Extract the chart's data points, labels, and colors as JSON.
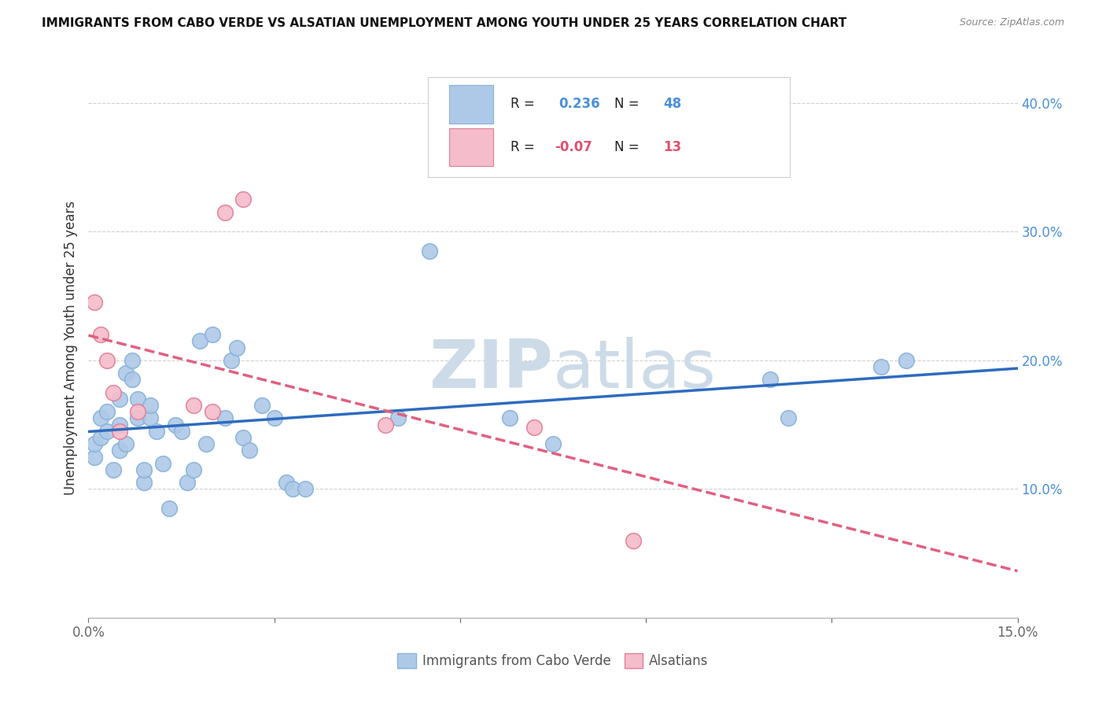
{
  "title": "IMMIGRANTS FROM CABO VERDE VS ALSATIAN UNEMPLOYMENT AMONG YOUTH UNDER 25 YEARS CORRELATION CHART",
  "source": "Source: ZipAtlas.com",
  "ylabel_left": "Unemployment Among Youth under 25 years",
  "x_min": 0.0,
  "x_max": 0.15,
  "y_min": 0.0,
  "y_max": 0.42,
  "right_yticks": [
    0.1,
    0.2,
    0.3,
    0.4
  ],
  "right_yticklabels": [
    "10.0%",
    "20.0%",
    "30.0%",
    "40.0%"
  ],
  "bottom_xticks": [
    0.0,
    0.03,
    0.06,
    0.09,
    0.12,
    0.15
  ],
  "bottom_xticklabels_show": [
    "0.0%",
    "",
    "",
    "",
    "",
    "15.0%"
  ],
  "legend_labels": [
    "Immigrants from Cabo Verde",
    "Alsatians"
  ],
  "series1_color": "#aec9e8",
  "series1_edge": "#89b3d9",
  "series2_color": "#f5bccb",
  "series2_edge": "#e08099",
  "trendline1_color": "#2e6bbf",
  "trendline2_color": "#e06080",
  "R1": 0.236,
  "N1": 48,
  "R2": -0.07,
  "N2": 13,
  "blue_points_x": [
    0.001,
    0.001,
    0.002,
    0.002,
    0.003,
    0.003,
    0.004,
    0.005,
    0.005,
    0.005,
    0.006,
    0.006,
    0.007,
    0.007,
    0.008,
    0.008,
    0.009,
    0.009,
    0.01,
    0.01,
    0.011,
    0.012,
    0.013,
    0.014,
    0.015,
    0.016,
    0.017,
    0.018,
    0.019,
    0.02,
    0.022,
    0.023,
    0.024,
    0.025,
    0.026,
    0.028,
    0.03,
    0.032,
    0.033,
    0.035,
    0.05,
    0.055,
    0.068,
    0.075,
    0.11,
    0.113,
    0.128,
    0.132
  ],
  "blue_points_y": [
    0.125,
    0.135,
    0.14,
    0.155,
    0.145,
    0.16,
    0.115,
    0.13,
    0.15,
    0.17,
    0.135,
    0.19,
    0.185,
    0.2,
    0.155,
    0.17,
    0.105,
    0.115,
    0.155,
    0.165,
    0.145,
    0.12,
    0.085,
    0.15,
    0.145,
    0.105,
    0.115,
    0.215,
    0.135,
    0.22,
    0.155,
    0.2,
    0.21,
    0.14,
    0.13,
    0.165,
    0.155,
    0.105,
    0.1,
    0.1,
    0.155,
    0.285,
    0.155,
    0.135,
    0.185,
    0.155,
    0.195,
    0.2
  ],
  "pink_points_x": [
    0.001,
    0.002,
    0.003,
    0.004,
    0.005,
    0.008,
    0.017,
    0.02,
    0.022,
    0.025,
    0.048,
    0.072,
    0.088
  ],
  "pink_points_y": [
    0.245,
    0.22,
    0.2,
    0.175,
    0.145,
    0.16,
    0.165,
    0.16,
    0.315,
    0.325,
    0.15,
    0.148,
    0.06
  ],
  "watermark_line1": "ZIP",
  "watermark_line2": "atlas",
  "watermark_color": "#cddbe8",
  "background_color": "#ffffff",
  "grid_color": "#d0d0d0",
  "text_color": "#333333",
  "axis_color": "#666666",
  "blue_label_color": "#4a90d9",
  "pink_label_color": "#e05070"
}
